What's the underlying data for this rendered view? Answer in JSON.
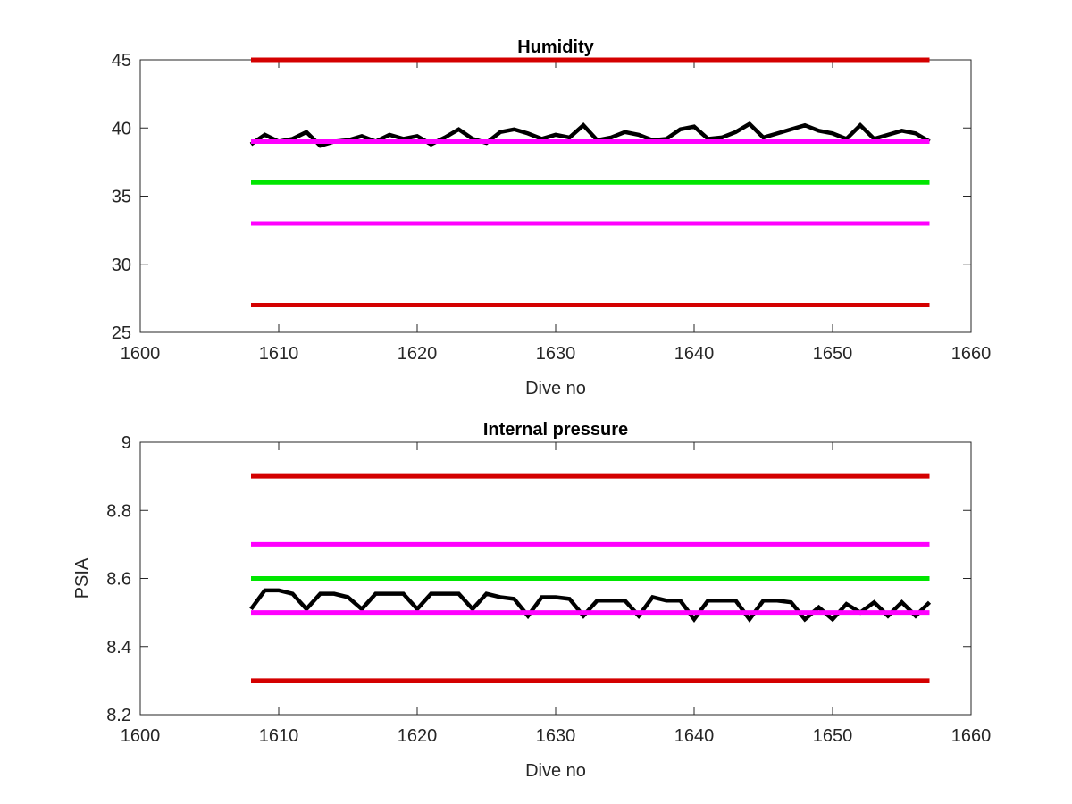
{
  "chart_data": [
    {
      "type": "line",
      "title": "Humidity",
      "xlabel": "Dive no",
      "ylabel": "",
      "xlim": [
        1600,
        1660
      ],
      "ylim": [
        25,
        45
      ],
      "xticks": [
        1600,
        1610,
        1620,
        1630,
        1640,
        1650,
        1660
      ],
      "yticks": [
        25,
        30,
        35,
        40,
        45
      ],
      "grid": false,
      "legend": "none",
      "series": [
        {
          "style": "thick-line",
          "color": "#000000",
          "x_start": 1608,
          "y": [
            38.8,
            39.5,
            39.0,
            39.2,
            39.7,
            38.7,
            39.0,
            39.1,
            39.4,
            39.0,
            39.5,
            39.2,
            39.4,
            38.8,
            39.3,
            39.9,
            39.2,
            38.9,
            39.7,
            39.9,
            39.6,
            39.2,
            39.5,
            39.3,
            40.2,
            39.1,
            39.3,
            39.7,
            39.5,
            39.1,
            39.2,
            39.9,
            40.1,
            39.2,
            39.3,
            39.7,
            40.3,
            39.3,
            39.6,
            39.9,
            40.2,
            39.8,
            39.6,
            39.2,
            40.2,
            39.2,
            39.5,
            39.8,
            39.6,
            39.0
          ]
        },
        {
          "style": "threshold",
          "color": "#d40000",
          "x": [
            1608,
            1657
          ],
          "y": [
            45,
            45
          ]
        },
        {
          "style": "threshold",
          "color": "#ff00ff",
          "x": [
            1608,
            1657
          ],
          "y": [
            39,
            39
          ]
        },
        {
          "style": "threshold",
          "color": "#00e600",
          "x": [
            1608,
            1657
          ],
          "y": [
            36,
            36
          ]
        },
        {
          "style": "threshold",
          "color": "#ff00ff",
          "x": [
            1608,
            1657
          ],
          "y": [
            33,
            33
          ]
        },
        {
          "style": "threshold",
          "color": "#d40000",
          "x": [
            1608,
            1657
          ],
          "y": [
            27,
            27
          ]
        }
      ]
    },
    {
      "type": "line",
      "title": "Internal pressure",
      "xlabel": "Dive no",
      "ylabel": "PSIA",
      "xlim": [
        1600,
        1660
      ],
      "ylim": [
        8.2,
        9
      ],
      "xticks": [
        1600,
        1610,
        1620,
        1630,
        1640,
        1650,
        1660
      ],
      "yticks": [
        8.2,
        8.4,
        8.6,
        8.8,
        9
      ],
      "grid": false,
      "legend": "none",
      "series": [
        {
          "style": "thick-line",
          "color": "#000000",
          "x_start": 1608,
          "y": [
            8.51,
            8.565,
            8.565,
            8.555,
            8.51,
            8.555,
            8.555,
            8.545,
            8.51,
            8.555,
            8.555,
            8.555,
            8.51,
            8.555,
            8.555,
            8.555,
            8.51,
            8.555,
            8.545,
            8.54,
            8.49,
            8.545,
            8.545,
            8.54,
            8.49,
            8.535,
            8.535,
            8.535,
            8.49,
            8.545,
            8.535,
            8.535,
            8.48,
            8.535,
            8.535,
            8.535,
            8.48,
            8.535,
            8.535,
            8.53,
            8.48,
            8.515,
            8.48,
            8.525,
            8.5,
            8.53,
            8.49,
            8.53,
            8.49,
            8.53
          ]
        },
        {
          "style": "threshold",
          "color": "#d40000",
          "x": [
            1608,
            1657
          ],
          "y": [
            8.9,
            8.9
          ]
        },
        {
          "style": "threshold",
          "color": "#ff00ff",
          "x": [
            1608,
            1657
          ],
          "y": [
            8.7,
            8.7
          ]
        },
        {
          "style": "threshold",
          "color": "#00e600",
          "x": [
            1608,
            1657
          ],
          "y": [
            8.6,
            8.6
          ]
        },
        {
          "style": "threshold",
          "color": "#ff00ff",
          "x": [
            1608,
            1657
          ],
          "y": [
            8.5,
            8.5
          ]
        },
        {
          "style": "threshold",
          "color": "#d40000",
          "x": [
            1608,
            1657
          ],
          "y": [
            8.3,
            8.3
          ]
        }
      ]
    }
  ]
}
